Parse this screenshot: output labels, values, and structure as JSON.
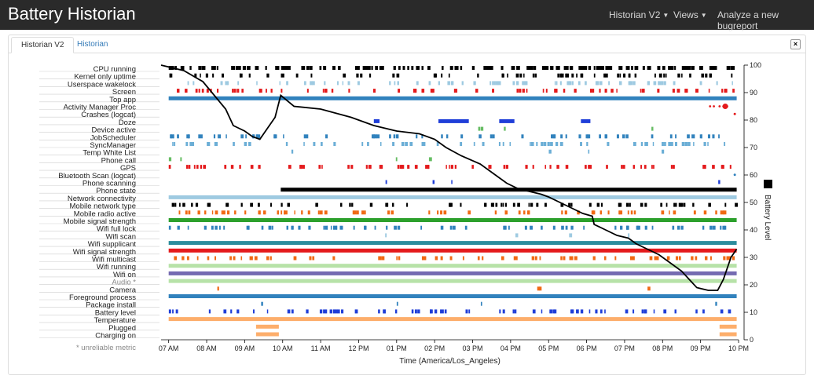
{
  "navbar": {
    "brand": "Battery Historian",
    "menu_historian_v2": "Historian V2",
    "menu_views": "Views",
    "menu_analyze": "Analyze a new bugreport"
  },
  "tabs": [
    {
      "label": "Historian V2",
      "active": true
    },
    {
      "label": "Historian",
      "active": false
    }
  ],
  "close_label": "×",
  "chart": {
    "metrics": [
      {
        "name": "CPU running",
        "color": "#000000",
        "pattern": "dense"
      },
      {
        "name": "Kernel only uptime",
        "color": "#000000",
        "pattern": "sparse"
      },
      {
        "name": "Userspace wakelock",
        "color": "#9ecae1",
        "pattern": "sparse"
      },
      {
        "name": "Screen",
        "color": "#e41a1c",
        "pattern": "sparse"
      },
      {
        "name": "Top app",
        "color": "#3182bd",
        "pattern": "solid"
      },
      {
        "name": "Activity Manager Proc",
        "color": "#e41a1c",
        "pattern": "dots"
      },
      {
        "name": "Crashes (logcat)",
        "color": "#e41a1c",
        "pattern": "dot"
      },
      {
        "name": "Doze",
        "color": "#1f3ed8",
        "pattern": "blocks"
      },
      {
        "name": "Device active",
        "color": "#66bd63",
        "pattern": "rare"
      },
      {
        "name": "JobScheduler",
        "color": "#3182bd",
        "pattern": "sparse"
      },
      {
        "name": "SyncManager",
        "color": "#6baed6",
        "pattern": "sparse"
      },
      {
        "name": "Temp White List",
        "color": "#6baed6",
        "pattern": "rare"
      },
      {
        "name": "Phone call",
        "color": "#66bd63",
        "pattern": "rare"
      },
      {
        "name": "GPS",
        "color": "#e41a1c",
        "pattern": "sparse"
      },
      {
        "name": "Bluetooth Scan (logcat)",
        "color": "#3182bd",
        "pattern": "dot"
      },
      {
        "name": "Phone scanning",
        "color": "#1f3ed8",
        "pattern": "rare"
      },
      {
        "name": "Phone state",
        "color": "#000000",
        "pattern": "half"
      },
      {
        "name": "Network connectivity",
        "color": "#9ecae1",
        "pattern": "solid"
      },
      {
        "name": "Mobile network type",
        "color": "#000000",
        "pattern": "sparse"
      },
      {
        "name": "Mobile radio active",
        "color": "#f16913",
        "pattern": "sparse"
      },
      {
        "name": "Mobile signal strength",
        "color": "#2ca02c",
        "pattern": "solid"
      },
      {
        "name": "Wifi full lock",
        "color": "#3182bd",
        "pattern": "sparse"
      },
      {
        "name": "Wifi scan",
        "color": "#9ecae1",
        "pattern": "rare"
      },
      {
        "name": "Wifi supplicant",
        "color": "#2b8c9c",
        "pattern": "solid"
      },
      {
        "name": "Wifi signal strength",
        "color": "#e41a1c",
        "pattern": "solid"
      },
      {
        "name": "Wifi multicast",
        "color": "#f16913",
        "pattern": "sparse"
      },
      {
        "name": "Wifi running",
        "color": "#b7e2a8",
        "pattern": "solid"
      },
      {
        "name": "Wifi on",
        "color": "#756bb1",
        "pattern": "solid"
      },
      {
        "name": "Audio *",
        "color": "#b7e2a8",
        "pattern": "solid"
      },
      {
        "name": "Camera",
        "color": "#f16913",
        "pattern": "rare"
      },
      {
        "name": "Foreground process",
        "color": "#3182bd",
        "pattern": "solid"
      },
      {
        "name": "Package install",
        "color": "#3182bd",
        "pattern": "rare"
      },
      {
        "name": "Battery level",
        "color": "#1f3ed8",
        "pattern": "sparse"
      },
      {
        "name": "Temperature",
        "color": "#fdae6b",
        "pattern": "solid"
      },
      {
        "name": "Plugged",
        "color": "#fdae6b",
        "pattern": "plug"
      },
      {
        "name": "Charging on",
        "color": "#fdae6b",
        "pattern": "plug"
      }
    ],
    "unreliable_note": "* unreliable metric",
    "x_ticks": [
      "07 AM",
      "08 AM",
      "09 AM",
      "10 AM",
      "11 AM",
      "12 PM",
      "01 PM",
      "02 PM",
      "03 PM",
      "04 PM",
      "05 PM",
      "06 PM",
      "07 PM",
      "08 PM",
      "09 PM",
      "10 PM"
    ],
    "x_label": "Time (America/Los_Angeles)",
    "y_ticks": [
      0,
      10,
      20,
      30,
      40,
      50,
      60,
      70,
      80,
      90,
      100
    ],
    "y_label": "Battery Level",
    "legend_marker_color": "#000000"
  },
  "chart_data": {
    "type": "line",
    "title": "",
    "xlabel": "Time (America/Los_Angeles)",
    "ylabel": "Battery Level",
    "ylim": [
      0,
      100
    ],
    "x_unit": "hours",
    "x_range": [
      6.8,
      22.0
    ],
    "series": [
      {
        "name": "Battery Level",
        "points": [
          [
            6.8,
            100
          ],
          [
            7.4,
            98
          ],
          [
            7.9,
            94
          ],
          [
            8.2,
            89
          ],
          [
            8.5,
            84
          ],
          [
            8.7,
            78
          ],
          [
            9.0,
            76
          ],
          [
            9.2,
            74
          ],
          [
            9.4,
            73
          ],
          [
            9.6,
            77
          ],
          [
            9.8,
            81
          ],
          [
            9.95,
            89
          ],
          [
            10.3,
            85
          ],
          [
            11.0,
            84
          ],
          [
            11.8,
            81
          ],
          [
            12.4,
            78
          ],
          [
            13.0,
            76
          ],
          [
            13.6,
            75
          ],
          [
            14.0,
            73
          ],
          [
            14.3,
            70
          ],
          [
            14.7,
            67
          ],
          [
            15.2,
            64
          ],
          [
            15.6,
            60
          ],
          [
            15.9,
            57
          ],
          [
            16.2,
            55
          ],
          [
            16.5,
            54
          ],
          [
            16.8,
            53
          ],
          [
            17.0,
            52
          ],
          [
            17.3,
            50
          ],
          [
            17.6,
            48
          ],
          [
            17.9,
            46
          ],
          [
            18.15,
            45
          ],
          [
            18.2,
            42
          ],
          [
            18.5,
            40
          ],
          [
            18.8,
            38
          ],
          [
            19.1,
            37
          ],
          [
            19.3,
            35
          ],
          [
            19.6,
            33
          ],
          [
            19.9,
            31
          ],
          [
            20.2,
            28
          ],
          [
            20.5,
            25
          ],
          [
            20.7,
            22
          ],
          [
            20.9,
            19
          ],
          [
            21.2,
            18
          ],
          [
            21.45,
            18
          ],
          [
            21.6,
            22
          ],
          [
            21.8,
            30
          ],
          [
            21.95,
            33
          ]
        ]
      }
    ]
  }
}
